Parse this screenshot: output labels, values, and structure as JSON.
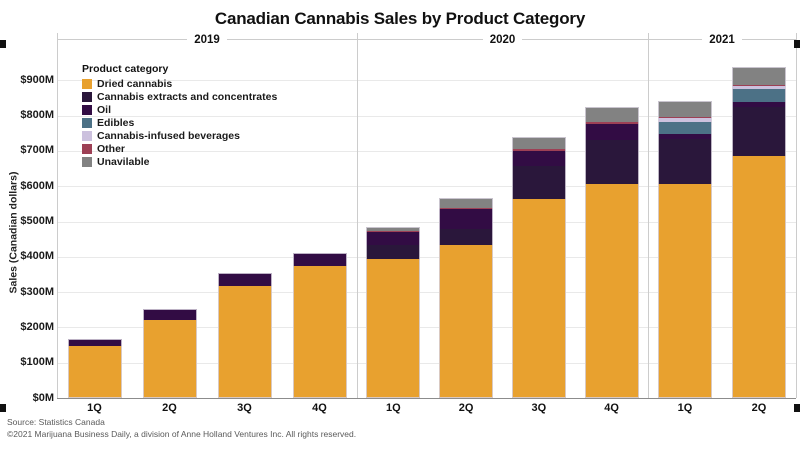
{
  "page": {
    "background": "#ffffff"
  },
  "chart_data": {
    "type": "bar",
    "stacked": true,
    "title": "Canadian Cannabis Sales by Product Category",
    "ylabel": "Sales (Canadian dollars)",
    "legend_title": "Product category",
    "legend_position": "top-left",
    "grid": true,
    "ylim": [
      0,
      965
    ],
    "ytick_step": 100,
    "yticks": [
      "$0M",
      "$100M",
      "$200M",
      "$300M",
      "$400M",
      "$500M",
      "$600M",
      "$700M",
      "$800M",
      "$900M"
    ],
    "groups": [
      {
        "year": "2019",
        "quarters": [
          "1Q",
          "2Q",
          "3Q",
          "4Q"
        ]
      },
      {
        "year": "2020",
        "quarters": [
          "1Q",
          "2Q",
          "3Q",
          "4Q"
        ]
      },
      {
        "year": "2021",
        "quarters": [
          "1Q",
          "2Q"
        ]
      }
    ],
    "series": [
      {
        "name": "Dried cannabis",
        "color": "#E8A12F",
        "values": [
          146,
          222,
          317,
          375,
          395,
          433,
          564,
          607,
          607,
          686
        ]
      },
      {
        "name": "Cannabis extracts and concentrates",
        "color": "#2A173B",
        "values": [
          0,
          0,
          0,
          0,
          38,
          45,
          94,
          123,
          128,
          137
        ]
      },
      {
        "name": "Oil",
        "color": "#320C44",
        "values": [
          20,
          31,
          38,
          36,
          38,
          57,
          44,
          47,
          14,
          15
        ]
      },
      {
        "name": "Edibles",
        "color": "#4C7186",
        "values": [
          0,
          0,
          0,
          0,
          0,
          0,
          0,
          0,
          33,
          38
        ]
      },
      {
        "name": "Cannabis-infused beverages",
        "color": "#CCC1DE",
        "values": [
          0,
          0,
          0,
          0,
          0,
          0,
          0,
          0,
          10,
          9
        ]
      },
      {
        "name": "Other",
        "color": "#9D4055",
        "values": [
          0,
          0,
          0,
          0,
          2,
          4,
          2,
          5,
          4,
          3
        ]
      },
      {
        "name": "Unavilable",
        "color": "#828282",
        "values": [
          0,
          0,
          0,
          0,
          11,
          28,
          36,
          42,
          45,
          49
        ]
      }
    ],
    "totals": [
      166,
      253,
      355,
      411,
      484,
      567,
      740,
      824,
      841,
      937
    ]
  },
  "footer": {
    "source": "Source: Statistics Canada",
    "copyright": "©2021 Marijuana Business Daily, a division of Anne Holland Ventures Inc. All rights reserved."
  }
}
